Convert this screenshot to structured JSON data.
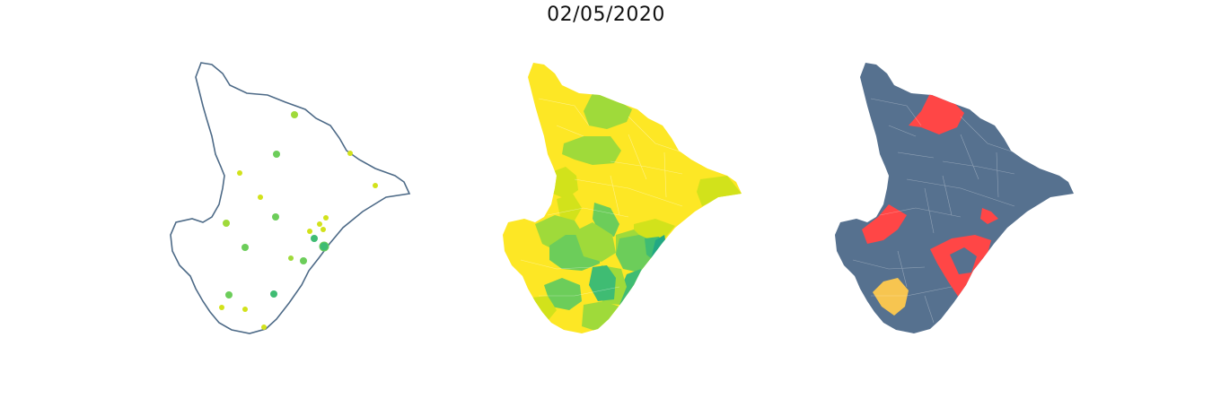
{
  "title": "02/05/2020",
  "colors": {
    "outline": "#4d6a87",
    "base_region": "#56718f",
    "highlight_red": "#ff4646",
    "highlight_orange": "#f7c550",
    "viridis_yellow": "#fde725",
    "viridis_lime": "#d2e21b",
    "viridis_lightgreen": "#9fda3a",
    "viridis_green": "#6ccd5a",
    "viridis_teal_green": "#3fbc73",
    "viridis_teal": "#22a884"
  },
  "panels": [
    {
      "kind": "bubble-map"
    },
    {
      "kind": "choropleth"
    },
    {
      "kind": "highlight-map"
    }
  ]
}
